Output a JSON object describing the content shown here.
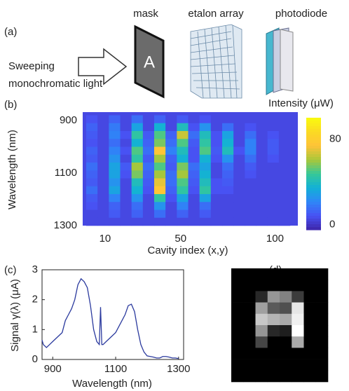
{
  "panels": {
    "a": "(a)",
    "b": "(b)",
    "c": "(c)",
    "d": "(d)"
  },
  "diagram": {
    "source": [
      "Sweeping",
      "monochromatic light"
    ],
    "mask": "mask",
    "mask_letter": "A",
    "etalon": "etalon array",
    "photodiode": "photodiode"
  },
  "chart_data": [
    {
      "type": "heatmap",
      "xlabel": "Cavity index (x,y)",
      "ylabel": "Wavelength (nm)",
      "colorbar_label": "Intensity (μW)",
      "colormap": "parula",
      "xlim": [
        0,
        108
      ],
      "ylim": [
        880,
        1300
      ],
      "xticks": [
        10,
        50,
        100
      ],
      "yticks": [
        900,
        1100,
        1300
      ],
      "clim": [
        -5,
        100
      ],
      "cticks": [
        0,
        80
      ],
      "z": [
        [
          8,
          5,
          12,
          5,
          15,
          5,
          12,
          5,
          10,
          5,
          8,
          5,
          5,
          5,
          5,
          5,
          5,
          5
        ],
        [
          12,
          5,
          18,
          5,
          30,
          5,
          35,
          5,
          40,
          8,
          25,
          5,
          15,
          5,
          8,
          5,
          5,
          5
        ],
        [
          10,
          5,
          20,
          8,
          45,
          10,
          50,
          12,
          65,
          15,
          40,
          8,
          30,
          5,
          15,
          5,
          8,
          5
        ],
        [
          8,
          5,
          15,
          5,
          35,
          12,
          55,
          15,
          50,
          10,
          45,
          8,
          35,
          5,
          20,
          5,
          10,
          5
        ],
        [
          12,
          5,
          20,
          8,
          50,
          15,
          75,
          20,
          40,
          8,
          50,
          10,
          40,
          8,
          20,
          5,
          10,
          5
        ],
        [
          10,
          5,
          25,
          5,
          45,
          10,
          60,
          12,
          35,
          8,
          35,
          8,
          25,
          5,
          15,
          5,
          8,
          5
        ],
        [
          15,
          5,
          30,
          10,
          60,
          15,
          50,
          10,
          55,
          15,
          30,
          5,
          15,
          5,
          10,
          5,
          5,
          5
        ],
        [
          12,
          5,
          30,
          8,
          55,
          12,
          60,
          15,
          60,
          12,
          35,
          5,
          12,
          5,
          8,
          5,
          5,
          5
        ],
        [
          10,
          5,
          25,
          5,
          40,
          10,
          70,
          15,
          50,
          10,
          40,
          8,
          10,
          5,
          5,
          5,
          5,
          5
        ],
        [
          15,
          5,
          30,
          5,
          35,
          8,
          75,
          12,
          45,
          8,
          45,
          8,
          8,
          5,
          5,
          5,
          5,
          5
        ],
        [
          10,
          5,
          20,
          5,
          25,
          5,
          45,
          8,
          30,
          5,
          30,
          5,
          5,
          5,
          5,
          5,
          5,
          5
        ],
        [
          8,
          5,
          12,
          5,
          15,
          5,
          25,
          5,
          20,
          5,
          15,
          5,
          5,
          5,
          5,
          5,
          5,
          5
        ],
        [
          5,
          5,
          10,
          5,
          12,
          5,
          15,
          5,
          12,
          5,
          10,
          5,
          5,
          5,
          5,
          5,
          5,
          5
        ],
        [
          5,
          5,
          5,
          5,
          5,
          5,
          5,
          5,
          5,
          5,
          5,
          5,
          5,
          5,
          5,
          5,
          5,
          5
        ]
      ]
    },
    {
      "type": "line",
      "xlabel": "Wavelength (nm)",
      "ylabel": "Signal γ(λ) (μA)",
      "xlim": [
        866,
        1316
      ],
      "ylim": [
        0,
        3
      ],
      "xticks": [
        900,
        1100,
        1300
      ],
      "yticks": [
        0,
        1,
        2,
        3
      ],
      "color": "#2b3a9e",
      "x": [
        866,
        870,
        880,
        890,
        900,
        910,
        920,
        930,
        940,
        950,
        960,
        970,
        980,
        990,
        1000,
        1010,
        1020,
        1030,
        1040,
        1048,
        1052,
        1056,
        1060,
        1070,
        1080,
        1090,
        1100,
        1110,
        1120,
        1130,
        1140,
        1150,
        1160,
        1170,
        1180,
        1190,
        1200,
        1210,
        1220,
        1230,
        1240,
        1250,
        1260,
        1270,
        1280,
        1290,
        1300
      ],
      "values": [
        0.65,
        0.5,
        0.4,
        0.5,
        0.6,
        0.7,
        0.8,
        0.9,
        1.3,
        1.5,
        1.7,
        2.0,
        2.5,
        2.7,
        2.6,
        2.4,
        1.8,
        1.0,
        0.6,
        0.5,
        1.75,
        0.5,
        0.5,
        0.6,
        0.7,
        0.8,
        0.9,
        1.1,
        1.3,
        1.5,
        1.8,
        1.85,
        1.6,
        1.0,
        0.5,
        0.25,
        0.12,
        0.1,
        0.08,
        0.05,
        0.05,
        0.1,
        0.1,
        0.08,
        0.05,
        0.05,
        0.03
      ]
    },
    {
      "type": "image",
      "pixels": [
        [
          0,
          0,
          0,
          0,
          0,
          0,
          0,
          0
        ],
        [
          0,
          0,
          0,
          0,
          0,
          0,
          0,
          0
        ],
        [
          0,
          0,
          40,
          150,
          130,
          60,
          0,
          0
        ],
        [
          0,
          0,
          160,
          90,
          80,
          230,
          0,
          0
        ],
        [
          0,
          0,
          200,
          180,
          170,
          240,
          0,
          0
        ],
        [
          0,
          0,
          150,
          40,
          30,
          255,
          0,
          0
        ],
        [
          0,
          0,
          70,
          0,
          0,
          170,
          0,
          0
        ],
        [
          0,
          0,
          0,
          0,
          0,
          0,
          0,
          0
        ],
        [
          0,
          0,
          0,
          0,
          0,
          0,
          0,
          0
        ],
        [
          0,
          0,
          0,
          0,
          0,
          0,
          0,
          0
        ]
      ]
    }
  ]
}
